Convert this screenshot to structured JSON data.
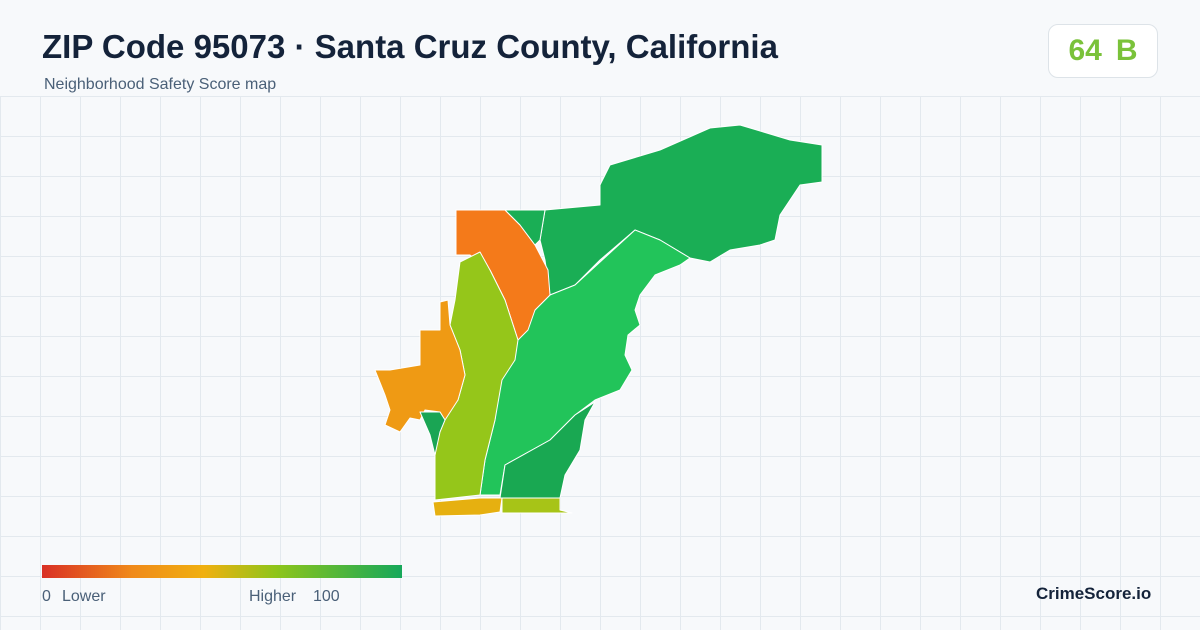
{
  "header": {
    "title": "ZIP Code 95073 · Santa Cruz County, California",
    "subtitle": "Neighborhood Safety Score map"
  },
  "score": {
    "value": "64",
    "grade": "B"
  },
  "legend": {
    "min": "0",
    "min_label": "Lower",
    "max_label": "Higher",
    "max": "100"
  },
  "brand": "CrimeScore.io"
}
